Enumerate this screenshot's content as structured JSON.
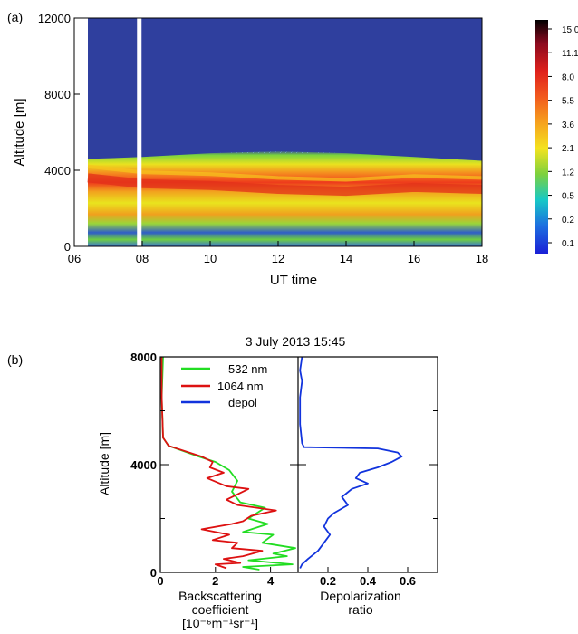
{
  "chart_data": [
    {
      "type": "heatmap",
      "panel_label": "(a)",
      "xlabel": "UT time",
      "ylabel": "Altitude [m]",
      "xlim": [
        6,
        18
      ],
      "ylim": [
        0,
        12000
      ],
      "xticks": [
        "06",
        "08",
        "10",
        "12",
        "14",
        "16",
        "18"
      ],
      "yticks": [
        "0",
        "4000",
        "8000",
        "12000"
      ],
      "colorbar": {
        "ticks": [
          "15.0",
          "11.1",
          "8.0",
          "5.5",
          "3.6",
          "2.1",
          "1.2",
          "0.5",
          "0.2",
          "0.1"
        ],
        "colors": [
          "#000000",
          "#8b0a1f",
          "#e0211c",
          "#f25a1e",
          "#f6a21e",
          "#f4e31e",
          "#7dd13d",
          "#17c9c6",
          "#1d6fe0",
          "#1a1fd6"
        ]
      },
      "layers": {
        "background_top_color": "#2f3f9e",
        "data_start_time": 6.4,
        "data_gap_time": 7.9,
        "aerosol_top_altitude": [
          [
            6.4,
            4600
          ],
          [
            8,
            4700
          ],
          [
            10,
            4900
          ],
          [
            12,
            5000
          ],
          [
            14,
            4900
          ],
          [
            16,
            4700
          ],
          [
            18,
            4500
          ]
        ],
        "dense_layer_altitude": [
          [
            6.4,
            3600
          ],
          [
            8,
            3300
          ],
          [
            10,
            3200
          ],
          [
            12,
            3000
          ],
          [
            14,
            2900
          ],
          [
            16,
            3100
          ],
          [
            18,
            3000
          ]
        ]
      }
    },
    {
      "type": "line",
      "panel_label": "(b)",
      "title": "3 July 2013 15:45",
      "ylabel": "Altitude [m]",
      "ylim": [
        0,
        8000
      ],
      "yticks": [
        "0",
        "4000",
        "8000"
      ],
      "legend_position": "top-left",
      "left_axis": {
        "xlabel_lines": [
          "Backscattering",
          "coefficient",
          "[10⁻⁶m⁻¹sr⁻¹]"
        ],
        "xlim": [
          0,
          5
        ],
        "xticks": [
          "0",
          "2",
          "4"
        ]
      },
      "right_axis": {
        "xlabel_lines": [
          "Depolarization",
          "ratio"
        ],
        "xlim": [
          0.05,
          0.75
        ],
        "xticks": [
          "0.2",
          "0.4",
          "0.6"
        ]
      },
      "series": [
        {
          "name": "532 nm",
          "color": "#22dd22",
          "axis": "left",
          "points": [
            [
              0.1,
              8000
            ],
            [
              0.05,
              6500
            ],
            [
              0.1,
              5000
            ],
            [
              0.3,
              4700
            ],
            [
              1.4,
              4300
            ],
            [
              2.0,
              4100
            ],
            [
              2.5,
              3800
            ],
            [
              2.8,
              3400
            ],
            [
              2.6,
              3000
            ],
            [
              2.9,
              2600
            ],
            [
              3.8,
              2400
            ],
            [
              3.2,
              2000
            ],
            [
              3.9,
              1800
            ],
            [
              3.0,
              1500
            ],
            [
              4.1,
              1400
            ],
            [
              3.7,
              1100
            ],
            [
              4.9,
              900
            ],
            [
              4.1,
              700
            ],
            [
              4.6,
              600
            ],
            [
              3.2,
              450
            ],
            [
              4.8,
              300
            ],
            [
              3.0,
              200
            ],
            [
              3.6,
              100
            ]
          ]
        },
        {
          "name": "1064 nm",
          "color": "#dd1111",
          "axis": "left",
          "points": [
            [
              0.05,
              8000
            ],
            [
              0.05,
              6500
            ],
            [
              0.1,
              5000
            ],
            [
              0.3,
              4700
            ],
            [
              1.5,
              4300
            ],
            [
              1.9,
              4100
            ],
            [
              1.8,
              3900
            ],
            [
              2.3,
              3700
            ],
            [
              1.7,
              3500
            ],
            [
              2.4,
              3200
            ],
            [
              3.2,
              3100
            ],
            [
              2.4,
              2700
            ],
            [
              2.8,
              2500
            ],
            [
              4.2,
              2300
            ],
            [
              3.3,
              2100
            ],
            [
              3.0,
              1900
            ],
            [
              2.6,
              1800
            ],
            [
              1.5,
              1600
            ],
            [
              2.5,
              1400
            ],
            [
              1.9,
              1200
            ],
            [
              2.8,
              1100
            ],
            [
              2.6,
              900
            ],
            [
              3.7,
              800
            ],
            [
              3.0,
              600
            ],
            [
              2.3,
              500
            ],
            [
              2.9,
              350
            ],
            [
              2.0,
              300
            ],
            [
              2.4,
              150
            ]
          ]
        },
        {
          "name": "depol",
          "color": "#1133dd",
          "axis": "right",
          "points": [
            [
              0.07,
              8000
            ],
            [
              0.06,
              7500
            ],
            [
              0.07,
              7100
            ],
            [
              0.06,
              6500
            ],
            [
              0.06,
              5500
            ],
            [
              0.07,
              4800
            ],
            [
              0.08,
              4650
            ],
            [
              0.45,
              4600
            ],
            [
              0.55,
              4450
            ],
            [
              0.57,
              4300
            ],
            [
              0.52,
              4100
            ],
            [
              0.45,
              3900
            ],
            [
              0.36,
              3700
            ],
            [
              0.34,
              3500
            ],
            [
              0.4,
              3300
            ],
            [
              0.32,
              3100
            ],
            [
              0.27,
              2800
            ],
            [
              0.3,
              2500
            ],
            [
              0.23,
              2200
            ],
            [
              0.2,
              2000
            ],
            [
              0.18,
              1700
            ],
            [
              0.21,
              1400
            ],
            [
              0.18,
              1100
            ],
            [
              0.15,
              800
            ],
            [
              0.1,
              500
            ],
            [
              0.07,
              300
            ],
            [
              0.06,
              150
            ]
          ]
        }
      ]
    }
  ]
}
